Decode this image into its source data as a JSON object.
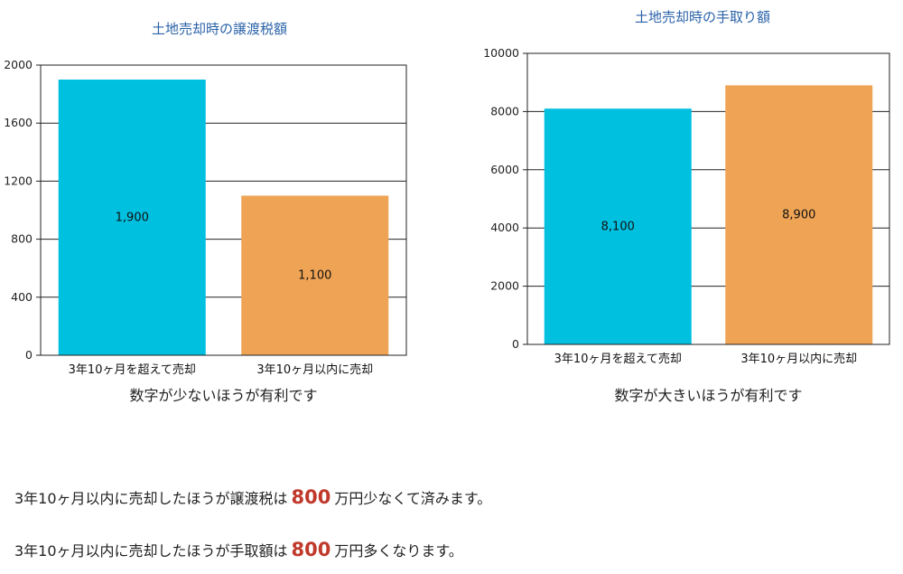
{
  "colors": {
    "series_1": "#00c0e0",
    "series_2": "#efa455",
    "title": "#2a62a8",
    "highlight": "#c0392b"
  },
  "chart_data": [
    {
      "type": "bar",
      "title": "土地売却時の譲渡税額",
      "categories": [
        "3年10ヶ月を超えて売却",
        "3年10ヶ月以内に売却"
      ],
      "values": [
        1900,
        1100
      ],
      "data_labels": [
        "1,900",
        "1,100"
      ],
      "yticks": [
        0,
        400,
        800,
        1200,
        1600,
        2000
      ],
      "ylim": [
        0,
        2000
      ],
      "xlabel": "数字が少ないほうが有利です",
      "ylabel": "",
      "grid": true,
      "legend": "none"
    },
    {
      "type": "bar",
      "title": "土地売却時の手取り額",
      "categories": [
        "3年10ヶ月を超えて売却",
        "3年10ヶ月以内に売却"
      ],
      "values": [
        8100,
        8900
      ],
      "data_labels": [
        "8,100",
        "8,900"
      ],
      "yticks": [
        0,
        2000,
        4000,
        6000,
        8000,
        10000
      ],
      "ylim": [
        0,
        10000
      ],
      "xlabel": "数字が大きいほうが有利です",
      "ylabel": "",
      "grid": true,
      "legend": "none"
    }
  ],
  "summary": [
    {
      "before": "3年10ヶ月以内に売却したほうが譲渡税は",
      "number": "800",
      "after": "万円少なくて済みます。"
    },
    {
      "before": "3年10ヶ月以内に売却したほうが手取額は",
      "number": "800",
      "after": "万円多くなります。"
    }
  ]
}
